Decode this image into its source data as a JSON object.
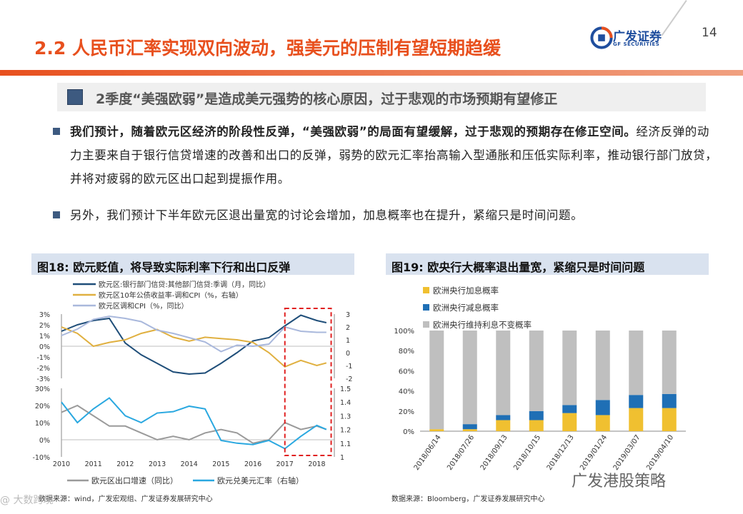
{
  "header": {
    "title": "2.2 人民币汇率实现双向波动，强美元的压制有望短期趋缓",
    "page_number": "14",
    "logo_cn": "广发证券",
    "logo_en": "GF SECURITIES"
  },
  "subtitle": "2季度“美强欧弱”是造成美元强势的核心原因，过于悲观的市场预期有望修正",
  "bullets": [
    {
      "bold": "我们预计，随着欧元区经济的阶段性反弹，“美强欧弱”的局面有望缓解，过于悲观的预期存在修正空间。",
      "text": "经济反弹的动力主要来自于银行信贷增速的改善和出口的反弹，弱势的欧元汇率抬高输入型通胀和压低实际利率，推动银行部门放贷，并将对疲弱的欧元区出口起到提振作用。"
    },
    {
      "bold": "",
      "text": "另外，我们预计下半年欧元区退出量宽的讨论会增加，加息概率也在提升，紧缩只是时间问题。"
    }
  ],
  "fig18": {
    "header": "图18:  欧元贬值，将导致实际利率下行和出口反弹",
    "source": "数据来源：wind，广发宏观组、广发证券发展研究中心"
  },
  "fig19": {
    "header": "图19:  欧央行大概率退出量宽，紧缩只是时间问题",
    "source": "数据来源：Bloomberg，广发证券发展研究中心"
  },
  "watermark": "广发港股策略",
  "watermark2": "@  大数跨境",
  "colors": {
    "accent": "#e8501e",
    "navy": "#1f4e79",
    "blue": "#1f6fb5",
    "gold": "#f0c030",
    "gray": "#bfbfbf",
    "lightblue": "#2aa8e0",
    "sand": "#e0b040",
    "lavender": "#a9b8dc",
    "darkgray": "#9a9a9a"
  },
  "chart_data": [
    {
      "type": "line",
      "title": "",
      "top_panel": {
        "series": [
          {
            "name": "欧元区:银行部门信贷:其他部门信贷:季调（月，同比）",
            "axis": "left",
            "x": [
              2010,
              2010.5,
              2011,
              2011.5,
              2012,
              2012.5,
              2013,
              2013.5,
              2014,
              2014.5,
              2015,
              2015.5,
              2016,
              2016.5,
              2017,
              2017.5,
              2018,
              2018.3
            ],
            "y": [
              1.4,
              2.0,
              2.4,
              2.6,
              0.3,
              -0.8,
              -1.6,
              -2.4,
              -2.6,
              -2.5,
              -1.6,
              -0.6,
              0.5,
              0.8,
              1.9,
              2.9,
              2.4,
              2.2
            ]
          },
          {
            "name": "欧元区10年公债收益率-调和CPI（%，右轴）",
            "axis": "right",
            "x": [
              2010,
              2010.5,
              2011,
              2011.5,
              2012,
              2012.5,
              2013,
              2013.5,
              2014,
              2014.5,
              2015,
              2015.5,
              2016,
              2016.5,
              2017,
              2017.5,
              2018,
              2018.3
            ],
            "y": [
              2.0,
              1.5,
              0.5,
              0.8,
              1.0,
              1.5,
              1.8,
              1.2,
              0.9,
              1.2,
              1.1,
              1.0,
              0.8,
              0.0,
              -1.1,
              -0.6,
              -1.0,
              -0.8
            ]
          },
          {
            "name": "欧元区调和CPI（%，同比）",
            "axis": "left",
            "x": [
              2010,
              2010.5,
              2011,
              2011.5,
              2012,
              2012.5,
              2013,
              2013.5,
              2014,
              2014.5,
              2015,
              2015.5,
              2016,
              2016.5,
              2017,
              2017.5,
              2018,
              2018.3
            ],
            "y": [
              1.0,
              1.6,
              2.5,
              2.8,
              2.6,
              2.3,
              1.5,
              1.2,
              0.8,
              0.4,
              -0.5,
              0.1,
              0.0,
              0.2,
              1.8,
              1.4,
              1.3,
              1.3
            ]
          }
        ],
        "left_ticks": [
          "3%",
          "2%",
          "1%",
          "0%",
          "-1%",
          "-2%",
          "-3%"
        ],
        "right_ticks": [
          "3",
          "2",
          "1",
          "0",
          "-1",
          "-2"
        ]
      },
      "bottom_panel": {
        "series": [
          {
            "name": "欧元区出口增速（同比）",
            "axis": "left",
            "x": [
              2010,
              2010.5,
              2011,
              2011.5,
              2012,
              2012.5,
              2013,
              2013.5,
              2014,
              2014.5,
              2015,
              2015.5,
              2016,
              2016.5,
              2017,
              2017.5,
              2018,
              2018.3
            ],
            "y": [
              16,
              20,
              14,
              8,
              8,
              4,
              0,
              2,
              0,
              4,
              6,
              4,
              -2,
              0,
              10,
              6,
              8,
              6
            ]
          },
          {
            "name": "欧元兑美元汇率（右轴）",
            "axis": "right",
            "x": [
              2010,
              2010.5,
              2011,
              2011.5,
              2012,
              2012.5,
              2013,
              2013.5,
              2014,
              2014.5,
              2015,
              2015.5,
              2016,
              2016.5,
              2017,
              2017.5,
              2018,
              2018.3
            ],
            "y": [
              1.4,
              1.25,
              1.35,
              1.43,
              1.3,
              1.25,
              1.32,
              1.33,
              1.37,
              1.35,
              1.12,
              1.1,
              1.09,
              1.12,
              1.06,
              1.15,
              1.23,
              1.2
            ]
          }
        ],
        "left_ticks": [
          "30%",
          "20%",
          "10%",
          "0%",
          "-10%"
        ],
        "right_ticks": [
          "1.5",
          "1.4",
          "1.3",
          "1.2",
          "1.1",
          "1"
        ]
      },
      "x_ticks": [
        "2010",
        "2011",
        "2012",
        "2013",
        "2014",
        "2015",
        "2016",
        "2017",
        "2018"
      ]
    },
    {
      "type": "bar",
      "title": "",
      "stacked": true,
      "categories": [
        "2018/06/14",
        "2018/07/26",
        "2018/09/13",
        "2018/10/15",
        "2018/12/13",
        "2019/01/24",
        "2019/03/07",
        "2019/04/10"
      ],
      "series": [
        {
          "name": "欧洲央行加息概率",
          "values": [
            2,
            2,
            11,
            11,
            18,
            16,
            23,
            23
          ]
        },
        {
          "name": "欧洲央行减息概率",
          "values": [
            0,
            5,
            5,
            9,
            8,
            15,
            13,
            14
          ]
        },
        {
          "name": "欧洲央行维持利息不变概率",
          "values": [
            98,
            93,
            84,
            80,
            74,
            69,
            64,
            63
          ]
        }
      ],
      "y_ticks": [
        "100%",
        "80%",
        "60%",
        "40%",
        "20%",
        "0%"
      ],
      "ylim": [
        0,
        100
      ]
    }
  ]
}
